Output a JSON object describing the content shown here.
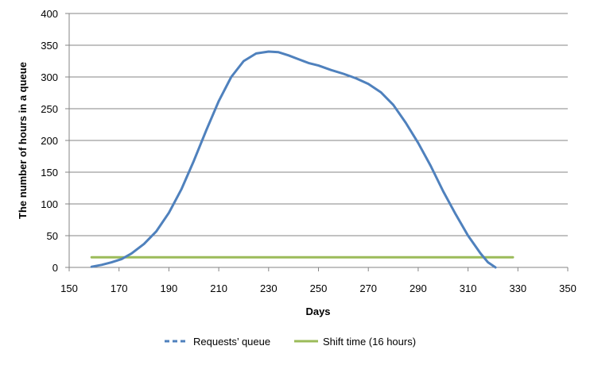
{
  "chart_data": {
    "type": "line",
    "title": "",
    "xlabel": "Days",
    "ylabel": "The number of hours in a queue",
    "xlim": [
      150,
      350
    ],
    "ylim": [
      0,
      400
    ],
    "xticks": [
      "150",
      "170",
      "190",
      "210",
      "230",
      "250",
      "270",
      "290",
      "310",
      "330",
      "350"
    ],
    "yticks": [
      "0",
      "50",
      "100",
      "150",
      "200",
      "250",
      "300",
      "350",
      "400"
    ],
    "grid": "horizontal",
    "legend": "bottom",
    "series": [
      {
        "name": "Requests’ queue",
        "color": "#4f81bd",
        "style": "dashed",
        "x": [
          159,
          163,
          167,
          171,
          175,
          180,
          185,
          190,
          195,
          200,
          205,
          210,
          215,
          220,
          225,
          230,
          234,
          238,
          242,
          246,
          250,
          255,
          260,
          265,
          270,
          275,
          280,
          285,
          290,
          295,
          300,
          305,
          310,
          315,
          318,
          321
        ],
        "y": [
          1,
          4,
          8,
          13,
          22,
          37,
          57,
          86,
          123,
          168,
          216,
          262,
          300,
          325,
          337,
          340,
          339,
          334,
          328,
          322,
          318,
          311,
          305,
          298,
          289,
          276,
          256,
          228,
          196,
          160,
          120,
          84,
          50,
          22,
          8,
          0
        ]
      },
      {
        "name": "Shift time (16 hours)",
        "color": "#9bbb59",
        "style": "solid",
        "x": [
          159,
          328
        ],
        "y": [
          16,
          16
        ]
      }
    ]
  }
}
